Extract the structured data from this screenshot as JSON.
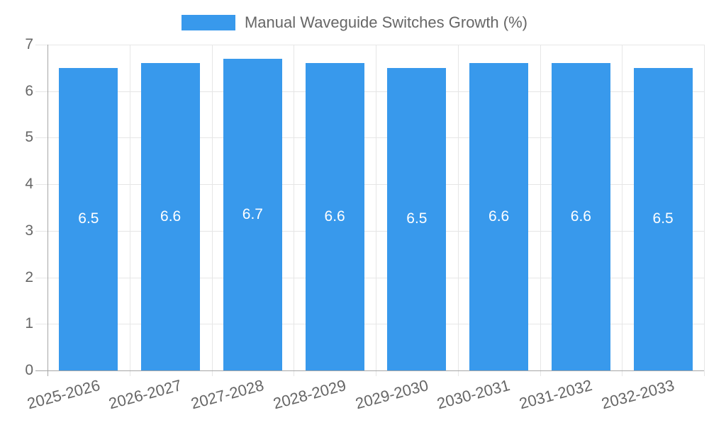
{
  "legend": {
    "label": "Manual Waveguide Switches Growth (%)"
  },
  "chart_data": {
    "type": "bar",
    "title": "",
    "categories": [
      "2025-2026",
      "2026-2027",
      "2027-2028",
      "2028-2029",
      "2029-2030",
      "2030-2031",
      "2031-2032",
      "2032-2033"
    ],
    "series": [
      {
        "name": "Manual Waveguide Switches Growth (%)",
        "color": "#3899ec",
        "values": [
          6.5,
          6.6,
          6.7,
          6.6,
          6.5,
          6.6,
          6.6,
          6.5
        ]
      }
    ],
    "bar_labels": [
      "6.5",
      "6.6",
      "6.7",
      "6.6",
      "6.5",
      "6.6",
      "6.6",
      "6.5"
    ],
    "xlabel": "",
    "ylabel": "",
    "ylim": [
      0,
      7
    ],
    "yticks": [
      "0",
      "1",
      "2",
      "3",
      "4",
      "5",
      "6",
      "7"
    ],
    "grid": true,
    "legend_position": "top"
  },
  "colors": {
    "bar": "#3899ec",
    "axis": "#a6a6a6",
    "grid": "#e6e6e6",
    "tick_label": "#666666",
    "value_label": "#ffffff",
    "background": "#ffffff"
  }
}
